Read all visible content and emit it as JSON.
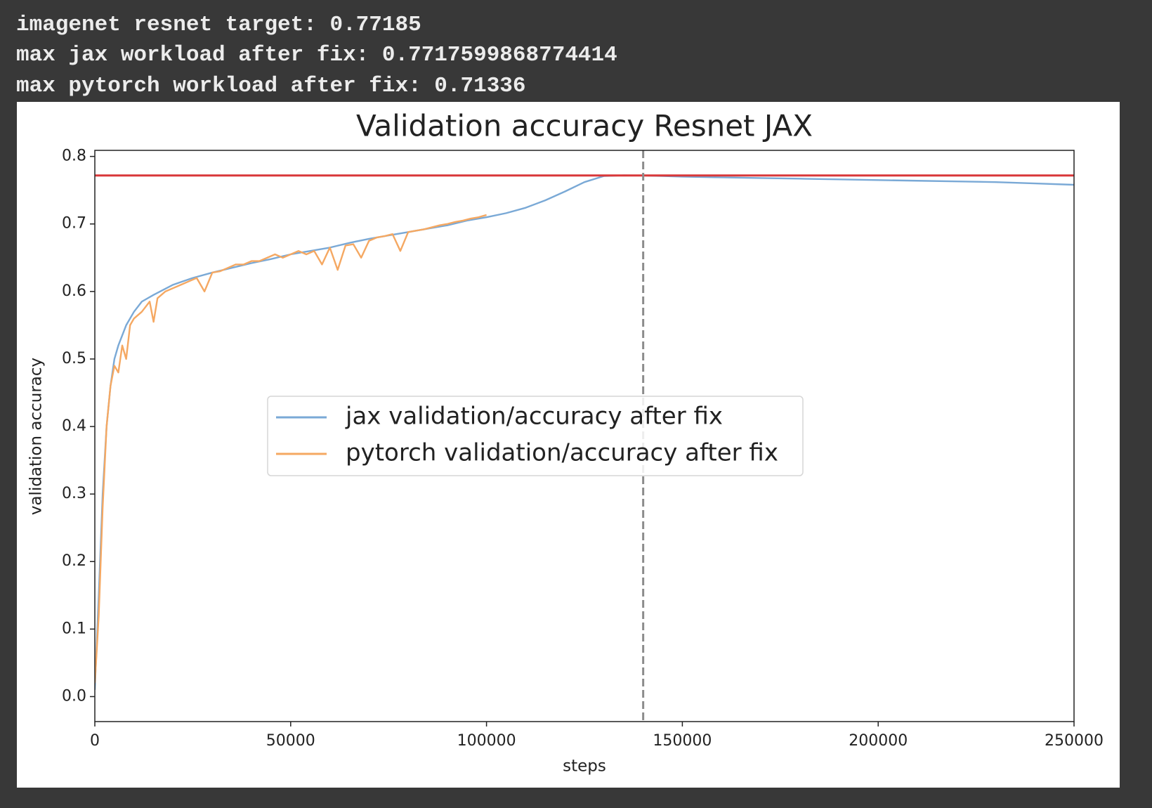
{
  "output_lines": [
    "imagenet resnet target: 0.77185",
    "max jax workload after fix: 0.7717599868774414",
    "max pytorch workload after fix: 0.71336"
  ],
  "chart_data": {
    "type": "line",
    "title": "Validation accuracy Resnet JAX",
    "x_label": "steps",
    "y_label": "validation accuracy",
    "xlim": [
      0,
      250000
    ],
    "ylim": [
      -0.037,
      0.809
    ],
    "xticks": [
      0,
      50000,
      100000,
      150000,
      200000,
      250000
    ],
    "yticks": [
      {
        "value": 0,
        "label": "0.0"
      },
      0.1,
      0.2,
      0.3,
      0.4,
      0.5,
      0.6,
      0.7,
      0.8
    ],
    "legend": "center",
    "hlines": [
      {
        "y": 0.77185,
        "color": "#d9383a"
      }
    ],
    "vlines": [
      {
        "x": 140000,
        "color": "#8c8c8c"
      }
    ],
    "series": [
      {
        "name": "jax validation/accuracy after fix",
        "color": "#7aa9d6",
        "x": [
          0,
          1000,
          2000,
          3000,
          4000,
          5000,
          6000,
          8000,
          10000,
          12000,
          15000,
          20000,
          25000,
          30000,
          35000,
          40000,
          45000,
          50000,
          55000,
          60000,
          65000,
          70000,
          75000,
          80000,
          85000,
          90000,
          95000,
          100000,
          105000,
          110000,
          115000,
          120000,
          125000,
          130000,
          135000,
          140000,
          145000,
          150000,
          160000,
          170000,
          180000,
          190000,
          200000,
          210000,
          220000,
          230000,
          240000,
          250000
        ],
        "values": [
          0.01,
          0.15,
          0.3,
          0.4,
          0.46,
          0.5,
          0.52,
          0.55,
          0.57,
          0.585,
          0.595,
          0.61,
          0.62,
          0.628,
          0.635,
          0.642,
          0.648,
          0.655,
          0.66,
          0.665,
          0.672,
          0.678,
          0.683,
          0.688,
          0.693,
          0.698,
          0.705,
          0.71,
          0.716,
          0.724,
          0.735,
          0.748,
          0.762,
          0.771,
          0.772,
          0.7717599868774414,
          0.771,
          0.77,
          0.769,
          0.768,
          0.767,
          0.766,
          0.765,
          0.764,
          0.763,
          0.762,
          0.76,
          0.758
        ]
      },
      {
        "name": "pytorch validation/accuracy after fix",
        "color": "#f5a862",
        "x": [
          0,
          1000,
          2000,
          3000,
          4000,
          5000,
          6000,
          7000,
          8000,
          9000,
          10000,
          12000,
          14000,
          15000,
          16000,
          18000,
          20000,
          22000,
          24000,
          26000,
          28000,
          30000,
          32000,
          34000,
          36000,
          38000,
          40000,
          42000,
          44000,
          46000,
          48000,
          50000,
          52000,
          54000,
          56000,
          58000,
          60000,
          62000,
          64000,
          66000,
          68000,
          70000,
          72000,
          74000,
          76000,
          78000,
          80000,
          82000,
          84000,
          86000,
          88000,
          90000,
          92000,
          94000,
          96000,
          98000,
          100000
        ],
        "values": [
          0.02,
          0.12,
          0.28,
          0.4,
          0.46,
          0.49,
          0.48,
          0.52,
          0.5,
          0.55,
          0.56,
          0.57,
          0.585,
          0.555,
          0.59,
          0.6,
          0.605,
          0.61,
          0.615,
          0.62,
          0.6,
          0.628,
          0.63,
          0.635,
          0.64,
          0.64,
          0.645,
          0.645,
          0.65,
          0.655,
          0.65,
          0.655,
          0.66,
          0.655,
          0.66,
          0.64,
          0.665,
          0.632,
          0.668,
          0.67,
          0.65,
          0.675,
          0.68,
          0.682,
          0.685,
          0.66,
          0.688,
          0.69,
          0.692,
          0.695,
          0.698,
          0.7,
          0.703,
          0.705,
          0.708,
          0.71,
          0.71336
        ]
      }
    ]
  }
}
